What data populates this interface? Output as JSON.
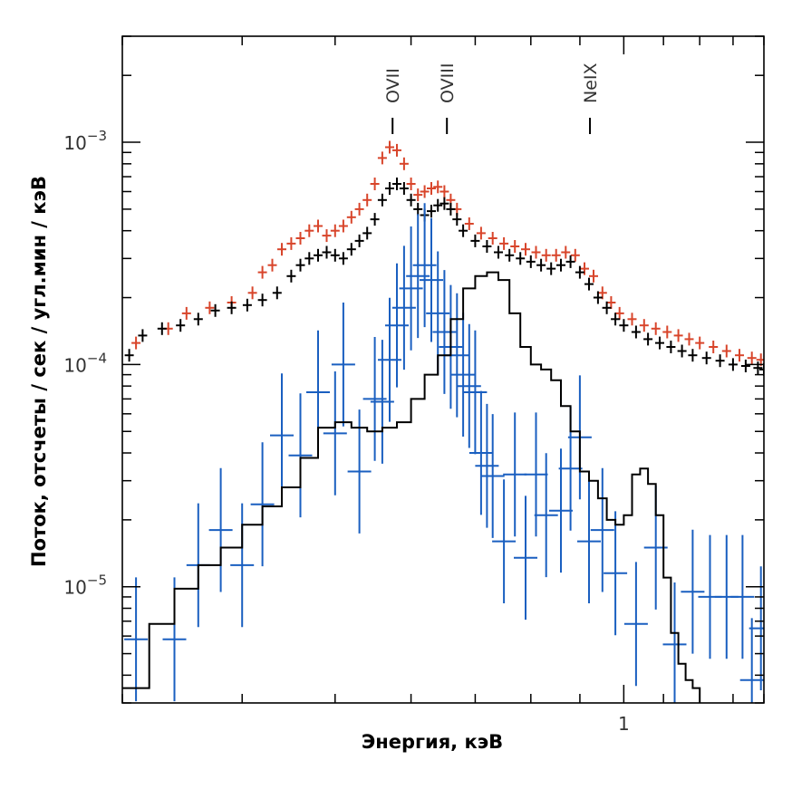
{
  "chart_data": {
    "type": "scatter",
    "title": "",
    "xlabel": "Энергия, кэВ",
    "ylabel": "Поток, отсчеты / сек / угл.мин / кэВ",
    "xscale": "log",
    "yscale": "log",
    "xlim": [
      0.3,
      1.4
    ],
    "ylim": [
      3e-06,
      0.003
    ],
    "grid": false,
    "legend": "none",
    "x_tick_labels": [
      {
        "value": 1,
        "label": "1"
      }
    ],
    "y_tick_labels": [
      {
        "value": 0.001,
        "base": "10",
        "exp": "−3"
      },
      {
        "value": 0.0001,
        "base": "10",
        "exp": "−4"
      },
      {
        "value": 1e-05,
        "base": "10",
        "exp": "−5"
      }
    ],
    "line_labels": [
      {
        "label": "OVII",
        "energy": 0.574
      },
      {
        "label": "OVIII",
        "energy": 0.654
      },
      {
        "label": "NeIX",
        "energy": 0.922
      }
    ],
    "colors": {
      "black": "#000000",
      "red": "#d8452b",
      "blue": "#1a5fc0"
    },
    "series": [
      {
        "color": "#d8452b",
        "style": "crosses",
        "points": [
          [
            0.31,
            0.000125
          ],
          [
            0.335,
            0.000145
          ],
          [
            0.35,
            0.00017
          ],
          [
            0.37,
            0.00018
          ],
          [
            0.39,
            0.00019
          ],
          [
            0.41,
            0.00021
          ],
          [
            0.42,
            0.00026
          ],
          [
            0.43,
            0.00028
          ],
          [
            0.44,
            0.00033
          ],
          [
            0.45,
            0.00035
          ],
          [
            0.46,
            0.00037
          ],
          [
            0.47,
            0.0004
          ],
          [
            0.48,
            0.00042
          ],
          [
            0.49,
            0.00038
          ],
          [
            0.5,
            0.0004
          ],
          [
            0.51,
            0.00042
          ],
          [
            0.52,
            0.00046
          ],
          [
            0.53,
            0.0005
          ],
          [
            0.54,
            0.00055
          ],
          [
            0.55,
            0.00065
          ],
          [
            0.56,
            0.00085
          ],
          [
            0.57,
            0.00095
          ],
          [
            0.58,
            0.00092
          ],
          [
            0.59,
            0.0008
          ],
          [
            0.6,
            0.00065
          ],
          [
            0.61,
            0.00058
          ],
          [
            0.62,
            0.0006
          ],
          [
            0.63,
            0.00062
          ],
          [
            0.64,
            0.00063
          ],
          [
            0.65,
            0.0006
          ],
          [
            0.66,
            0.00055
          ],
          [
            0.67,
            0.0005
          ],
          [
            0.69,
            0.00043
          ],
          [
            0.71,
            0.00039
          ],
          [
            0.73,
            0.00037
          ],
          [
            0.75,
            0.00035
          ],
          [
            0.77,
            0.00034
          ],
          [
            0.79,
            0.00033
          ],
          [
            0.81,
            0.00032
          ],
          [
            0.83,
            0.00031
          ],
          [
            0.85,
            0.00031
          ],
          [
            0.87,
            0.00032
          ],
          [
            0.89,
            0.00031
          ],
          [
            0.91,
            0.00027
          ],
          [
            0.93,
            0.00025
          ],
          [
            0.95,
            0.00021
          ],
          [
            0.97,
            0.00019
          ],
          [
            0.99,
            0.00017
          ],
          [
            1.02,
            0.00016
          ],
          [
            1.05,
            0.00015
          ],
          [
            1.08,
            0.000145
          ],
          [
            1.11,
            0.00014
          ],
          [
            1.14,
            0.000135
          ],
          [
            1.17,
            0.00013
          ],
          [
            1.2,
            0.000125
          ],
          [
            1.24,
            0.00012
          ],
          [
            1.28,
            0.000115
          ],
          [
            1.32,
            0.00011
          ],
          [
            1.36,
            0.000107
          ],
          [
            1.39,
            0.000105
          ]
        ]
      },
      {
        "color": "#000000",
        "style": "crosses",
        "points": [
          [
            0.305,
            0.00011
          ],
          [
            0.315,
            0.000135
          ],
          [
            0.33,
            0.000145
          ],
          [
            0.345,
            0.00015
          ],
          [
            0.36,
            0.00016
          ],
          [
            0.375,
            0.000175
          ],
          [
            0.39,
            0.00018
          ],
          [
            0.405,
            0.000185
          ],
          [
            0.42,
            0.000195
          ],
          [
            0.435,
            0.00021
          ],
          [
            0.45,
            0.00025
          ],
          [
            0.46,
            0.00028
          ],
          [
            0.47,
            0.0003
          ],
          [
            0.48,
            0.00031
          ],
          [
            0.49,
            0.00032
          ],
          [
            0.5,
            0.00031
          ],
          [
            0.51,
            0.0003
          ],
          [
            0.52,
            0.00033
          ],
          [
            0.53,
            0.00036
          ],
          [
            0.54,
            0.00039
          ],
          [
            0.55,
            0.00045
          ],
          [
            0.56,
            0.00055
          ],
          [
            0.57,
            0.00062
          ],
          [
            0.58,
            0.00065
          ],
          [
            0.59,
            0.00062
          ],
          [
            0.6,
            0.00055
          ],
          [
            0.61,
            0.0005
          ],
          [
            0.62,
            0.00047
          ],
          [
            0.63,
            0.00049
          ],
          [
            0.64,
            0.00052
          ],
          [
            0.65,
            0.00053
          ],
          [
            0.66,
            0.0005
          ],
          [
            0.67,
            0.00045
          ],
          [
            0.68,
            0.0004
          ],
          [
            0.7,
            0.00036
          ],
          [
            0.72,
            0.00034
          ],
          [
            0.74,
            0.00032
          ],
          [
            0.76,
            0.00031
          ],
          [
            0.78,
            0.0003
          ],
          [
            0.8,
            0.00029
          ],
          [
            0.82,
            0.00028
          ],
          [
            0.84,
            0.00027
          ],
          [
            0.86,
            0.00028
          ],
          [
            0.88,
            0.00029
          ],
          [
            0.9,
            0.00026
          ],
          [
            0.92,
            0.00023
          ],
          [
            0.94,
            0.0002
          ],
          [
            0.96,
            0.00018
          ],
          [
            0.98,
            0.00016
          ],
          [
            1,
            0.00015
          ],
          [
            1.03,
            0.00014
          ],
          [
            1.06,
            0.00013
          ],
          [
            1.09,
            0.000125
          ],
          [
            1.12,
            0.00012
          ],
          [
            1.15,
            0.000115
          ],
          [
            1.18,
            0.00011
          ],
          [
            1.22,
            0.000107
          ],
          [
            1.26,
            0.000104
          ],
          [
            1.3,
            0.0001
          ],
          [
            1.34,
            9.85e-05
          ],
          [
            1.38,
            9.65e-05
          ],
          [
            1.4,
            9.5e-05
          ]
        ]
      },
      {
        "color": "#1a5fc0",
        "style": "crosses",
        "points": [
          [
            0.31,
            5.8e-06
          ],
          [
            0.34,
            5.8e-06
          ],
          [
            0.36,
            1.25e-05
          ],
          [
            0.38,
            1.8e-05
          ],
          [
            0.4,
            1.25e-05
          ],
          [
            0.42,
            2.35e-05
          ],
          [
            0.44,
            4.8e-05
          ],
          [
            0.46,
            3.9e-05
          ],
          [
            0.48,
            7.5e-05
          ],
          [
            0.5,
            4.9e-05
          ],
          [
            0.51,
            0.0001
          ],
          [
            0.53,
            3.3e-05
          ],
          [
            0.55,
            7e-05
          ],
          [
            0.56,
            6.8e-05
          ],
          [
            0.57,
            0.000105
          ],
          [
            0.58,
            0.00015
          ],
          [
            0.59,
            0.00018
          ],
          [
            0.6,
            0.00022
          ],
          [
            0.61,
            0.00025
          ],
          [
            0.62,
            0.00028
          ],
          [
            0.63,
            0.00024
          ],
          [
            0.64,
            0.00017
          ],
          [
            0.65,
            0.00014
          ],
          [
            0.66,
            0.00012
          ],
          [
            0.67,
            0.00011
          ],
          [
            0.68,
            9e-05
          ],
          [
            0.69,
            8e-05
          ],
          [
            0.7,
            7.5e-05
          ],
          [
            0.71,
            4e-05
          ],
          [
            0.72,
            3.5e-05
          ],
          [
            0.73,
            3.15e-05
          ],
          [
            0.75,
            1.6e-05
          ],
          [
            0.77,
            3.2e-05
          ],
          [
            0.79,
            1.35e-05
          ],
          [
            0.81,
            3.2e-05
          ],
          [
            0.83,
            2.1e-05
          ],
          [
            0.86,
            2.2e-05
          ],
          [
            0.88,
            3.4e-05
          ],
          [
            0.9,
            4.7e-05
          ],
          [
            0.92,
            1.6e-05
          ],
          [
            0.95,
            1.8e-05
          ],
          [
            0.98,
            1.15e-05
          ],
          [
            1.03,
            6.8e-06
          ],
          [
            1.08,
            1.5e-05
          ],
          [
            1.13,
            5.5e-06
          ],
          [
            1.18,
            9.5e-06
          ],
          [
            1.23,
            9e-06
          ],
          [
            1.28,
            9e-06
          ],
          [
            1.33,
            9e-06
          ],
          [
            1.36,
            3.8e-06
          ],
          [
            1.39,
            6.5e-06
          ]
        ]
      },
      {
        "color": "#000000",
        "style": "step-line",
        "points": [
          [
            0.3,
            3.5e-06
          ],
          [
            0.32,
            6.8e-06
          ],
          [
            0.34,
            9.8e-06
          ],
          [
            0.36,
            1.25e-05
          ],
          [
            0.38,
            1.5e-05
          ],
          [
            0.4,
            1.9e-05
          ],
          [
            0.42,
            2.3e-05
          ],
          [
            0.44,
            2.8e-05
          ],
          [
            0.46,
            3.8e-05
          ],
          [
            0.48,
            5.2e-05
          ],
          [
            0.5,
            5.5e-05
          ],
          [
            0.52,
            5.2e-05
          ],
          [
            0.54,
            5e-05
          ],
          [
            0.56,
            5.2e-05
          ],
          [
            0.58,
            5.5e-05
          ],
          [
            0.6,
            7e-05
          ],
          [
            0.62,
            9e-05
          ],
          [
            0.64,
            0.00011
          ],
          [
            0.66,
            0.00016
          ],
          [
            0.68,
            0.00022
          ],
          [
            0.7,
            0.00025
          ],
          [
            0.72,
            0.00026
          ],
          [
            0.74,
            0.00024
          ],
          [
            0.76,
            0.00017
          ],
          [
            0.78,
            0.00012
          ],
          [
            0.8,
            0.0001
          ],
          [
            0.82,
            9.5e-05
          ],
          [
            0.84,
            8.5e-05
          ],
          [
            0.86,
            6.5e-05
          ],
          [
            0.88,
            5e-05
          ],
          [
            0.9,
            3.3e-05
          ],
          [
            0.92,
            3e-05
          ],
          [
            0.94,
            2.5e-05
          ],
          [
            0.96,
            2e-05
          ],
          [
            0.98,
            1.9e-05
          ],
          [
            1,
            2.1e-05
          ],
          [
            1.02,
            3.2e-05
          ],
          [
            1.04,
            3.4e-05
          ],
          [
            1.06,
            2.9e-05
          ],
          [
            1.08,
            2.1e-05
          ],
          [
            1.1,
            1.1e-05
          ],
          [
            1.12,
            6.2e-06
          ],
          [
            1.14,
            4.5e-06
          ],
          [
            1.16,
            3.8e-06
          ],
          [
            1.18,
            3.5e-06
          ],
          [
            1.2,
            3e-06
          ]
        ]
      }
    ]
  }
}
